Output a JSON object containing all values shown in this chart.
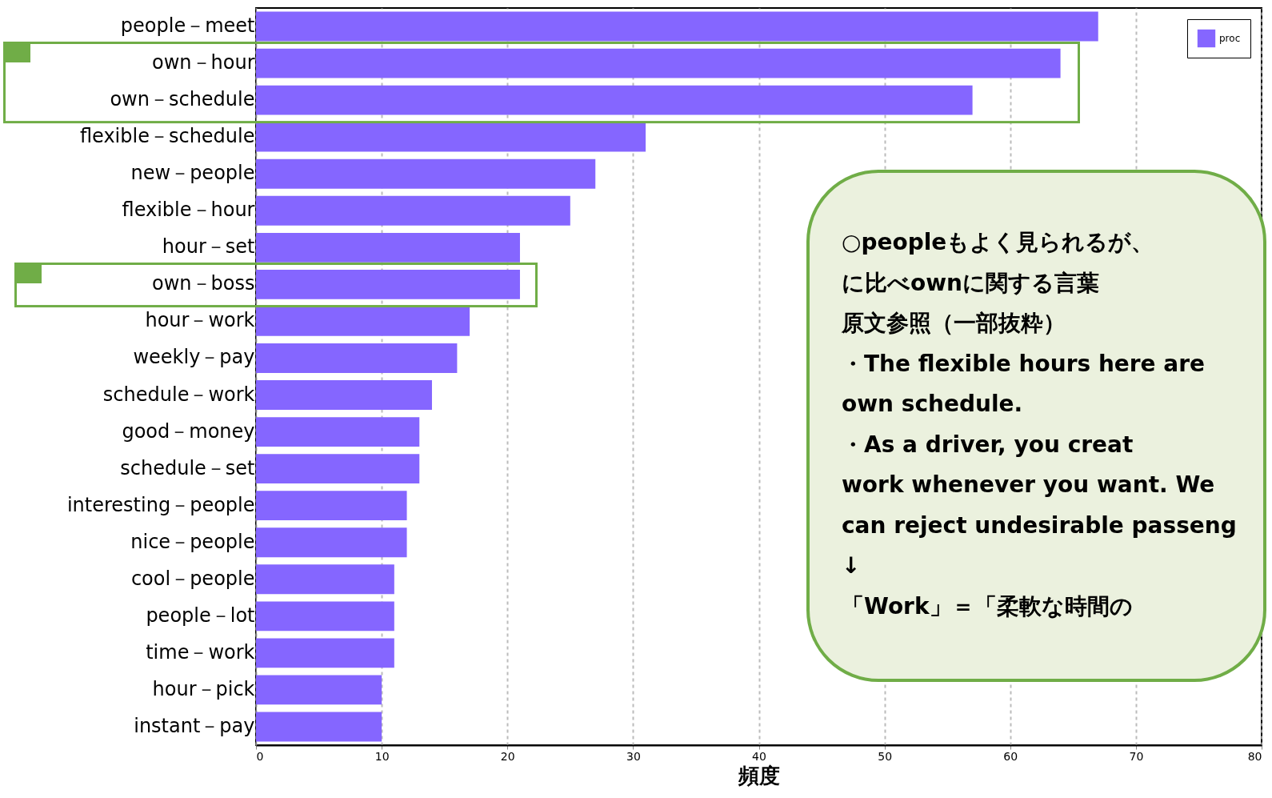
{
  "chart_data": {
    "type": "bar",
    "orientation": "horizontal",
    "xlabel": "頻度",
    "categories": [
      "people－meet",
      "own－hour",
      "own－schedule",
      "flexible－schedule",
      "new－people",
      "flexible－hour",
      "hour－set",
      "own－boss",
      "hour－work",
      "weekly－pay",
      "schedule－work",
      "good－money",
      "schedule－set",
      "interesting－people",
      "nice－people",
      "cool－people",
      "people－lot",
      "time－work",
      "hour－pick",
      "instant－pay"
    ],
    "series": [
      {
        "name": "proc",
        "color": "#8566ff",
        "values": [
          67,
          64,
          57,
          31,
          27,
          25,
          21,
          21,
          17,
          16,
          14,
          13,
          13,
          12,
          12,
          11,
          11,
          11,
          10,
          10
        ]
      }
    ],
    "xlim": [
      0,
      80
    ],
    "xticks": [
      0,
      10,
      20,
      30,
      40,
      50,
      60,
      70,
      80
    ],
    "grid": "x",
    "legend": "top right",
    "annotations": [
      "○peopleもよく見られるが、",
      "に比べownに関する言葉",
      "原文参照（一部抜粋）",
      "・The flexible hours here are",
      "own schedule.",
      "・As a driver, you creat",
      "work whenever you want. We",
      "can reject undesirable passeng",
      "↓",
      "「Work」＝「柔軟な時間の"
    ]
  }
}
